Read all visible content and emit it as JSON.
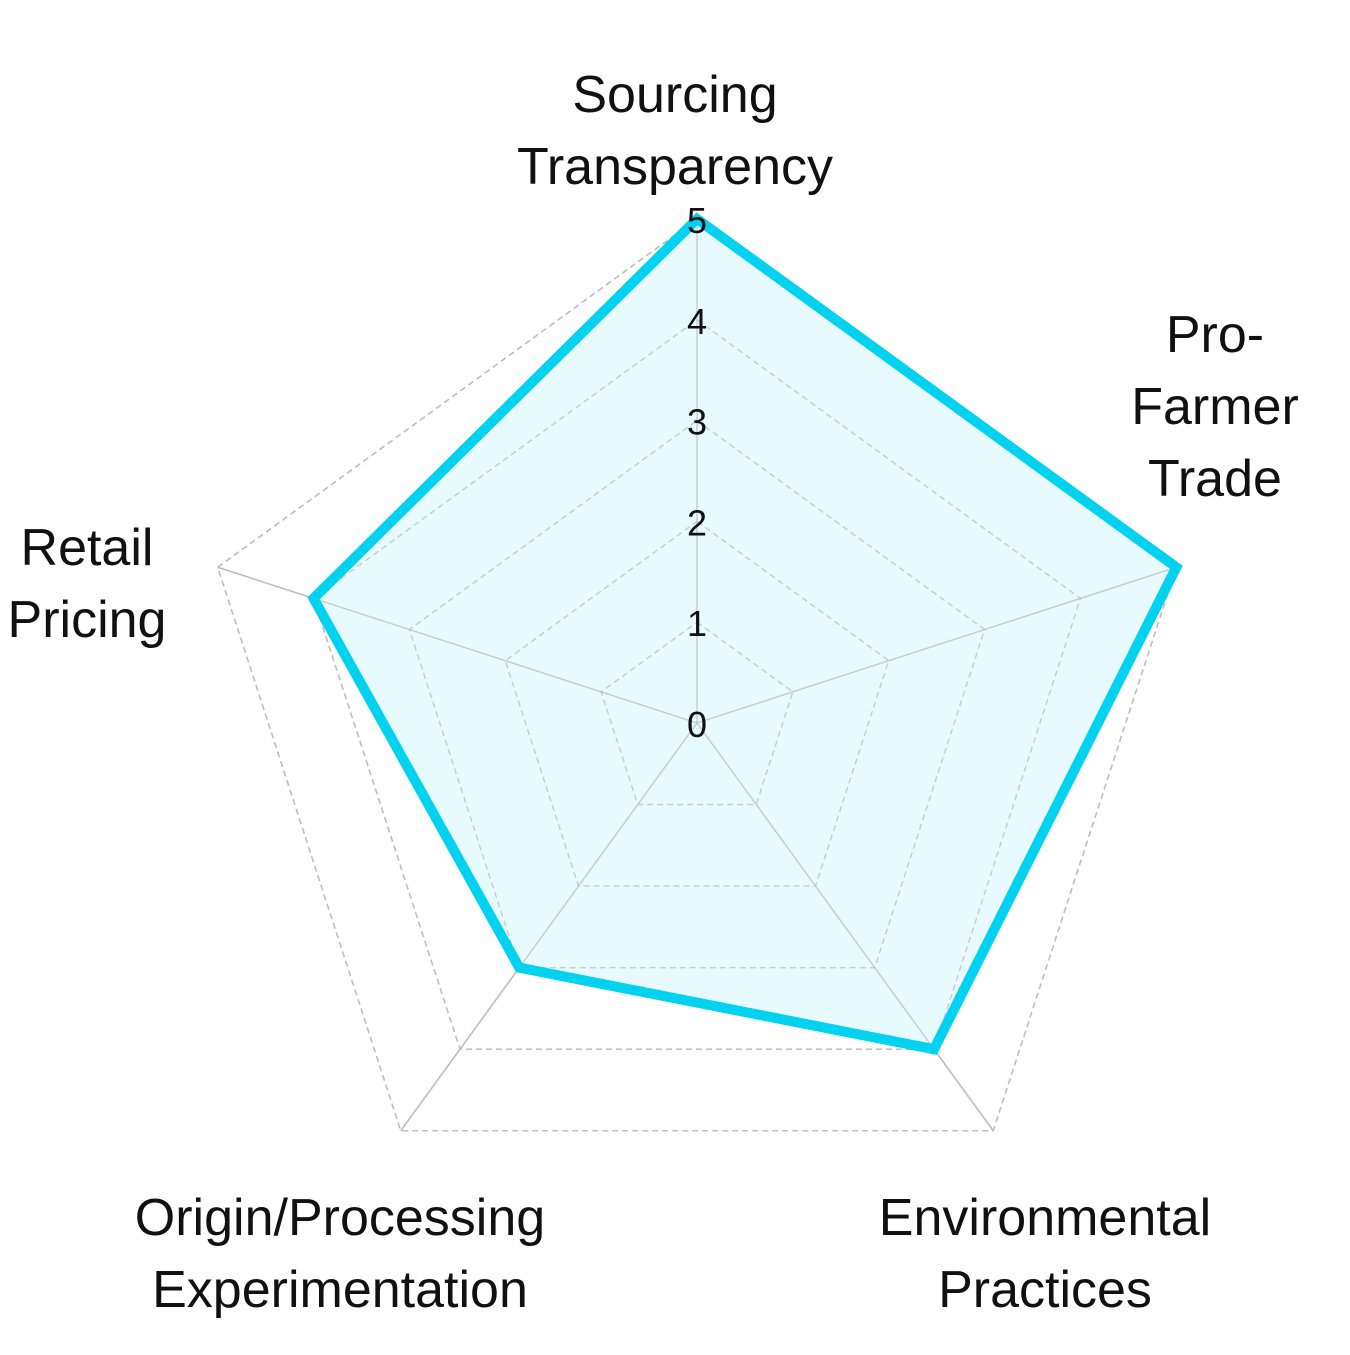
{
  "chart_data": {
    "type": "radar",
    "axes": [
      "Sourcing Transparency",
      "Pro-Farmer Trade",
      "Environmental Practices",
      "Origin/Processing Experimentation",
      "Retail Pricing"
    ],
    "axis_label_lines": [
      [
        "Sourcing",
        "Transparency"
      ],
      [
        "Pro-",
        "Farmer",
        "Trade"
      ],
      [
        "Environmental",
        "Practices"
      ],
      [
        "Origin/Processing",
        "Experimentation"
      ],
      [
        "Retail",
        "Pricing"
      ]
    ],
    "radial_ticks": [
      "0",
      "1",
      "2",
      "3",
      "4",
      "5"
    ],
    "rlim": [
      0,
      5
    ],
    "grid": true,
    "series": [
      {
        "values": [
          5,
          5,
          4,
          3,
          4
        ],
        "color": "#00d2f0",
        "fill": "#e4f9fd"
      }
    ]
  }
}
